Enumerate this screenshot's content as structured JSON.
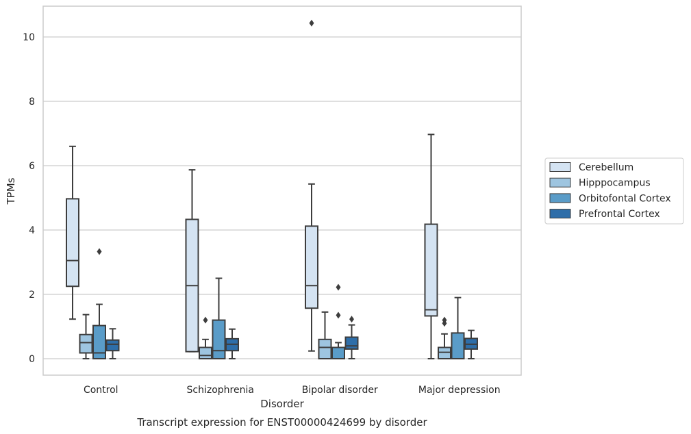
{
  "chart_data": {
    "type": "box",
    "title": "",
    "caption": "Transcript expression for ENST00000424699 by disorder",
    "xlabel": "Disorder",
    "ylabel": "TPMs",
    "ylim": [
      -0.5,
      10.95
    ],
    "yticks": [
      0,
      2,
      4,
      6,
      8,
      10
    ],
    "grid": true,
    "legend_position": "right",
    "categories": [
      "Control",
      "Schizophrenia",
      "Bipolar disorder",
      "Major depression"
    ],
    "series": [
      {
        "name": "Cerebellum",
        "color": "#d4e3f2",
        "boxes": [
          {
            "whisker_low": 1.23,
            "q1": 2.25,
            "median": 3.05,
            "q3": 4.97,
            "whisker_high": 6.6,
            "outliers": []
          },
          {
            "whisker_low": 0.22,
            "q1": 0.22,
            "median": 2.27,
            "q3": 4.33,
            "whisker_high": 5.87,
            "outliers": []
          },
          {
            "whisker_low": 0.24,
            "q1": 1.57,
            "median": 2.27,
            "q3": 4.12,
            "whisker_high": 5.43,
            "outliers": [
              10.43
            ]
          },
          {
            "whisker_low": 0.0,
            "q1": 1.33,
            "median": 1.52,
            "q3": 4.18,
            "whisker_high": 6.97,
            "outliers": []
          }
        ]
      },
      {
        "name": "Hipppocampus",
        "color": "#9ec5e0",
        "boxes": [
          {
            "whisker_low": 0.0,
            "q1": 0.18,
            "median": 0.5,
            "q3": 0.75,
            "whisker_high": 1.37,
            "outliers": []
          },
          {
            "whisker_low": 0.0,
            "q1": 0.0,
            "median": 0.1,
            "q3": 0.35,
            "whisker_high": 0.6,
            "outliers": [
              1.2
            ]
          },
          {
            "whisker_low": 0.0,
            "q1": 0.0,
            "median": 0.35,
            "q3": 0.6,
            "whisker_high": 1.45,
            "outliers": []
          },
          {
            "whisker_low": 0.0,
            "q1": 0.0,
            "median": 0.2,
            "q3": 0.35,
            "whisker_high": 0.77,
            "outliers": [
              1.1,
              1.2
            ]
          }
        ]
      },
      {
        "name": "Orbitofontal Cortex",
        "color": "#5a9cc8",
        "boxes": [
          {
            "whisker_low": 0.0,
            "q1": 0.0,
            "median": 0.18,
            "q3": 1.03,
            "whisker_high": 1.69,
            "outliers": [
              3.33
            ]
          },
          {
            "whisker_low": 0.0,
            "q1": 0.0,
            "median": 0.25,
            "q3": 1.2,
            "whisker_high": 2.5,
            "outliers": []
          },
          {
            "whisker_low": 0.0,
            "q1": 0.0,
            "median": 0.0,
            "q3": 0.35,
            "whisker_high": 0.5,
            "outliers": [
              1.35,
              2.22
            ]
          },
          {
            "whisker_low": 0.0,
            "q1": 0.0,
            "median": 0.0,
            "q3": 0.8,
            "whisker_high": 1.9,
            "outliers": []
          }
        ]
      },
      {
        "name": "Prefrontal Cortex",
        "color": "#2e6ea9",
        "boxes": [
          {
            "whisker_low": 0.0,
            "q1": 0.25,
            "median": 0.45,
            "q3": 0.58,
            "whisker_high": 0.93,
            "outliers": []
          },
          {
            "whisker_low": 0.0,
            "q1": 0.25,
            "median": 0.45,
            "q3": 0.62,
            "whisker_high": 0.92,
            "outliers": []
          },
          {
            "whisker_low": 0.0,
            "q1": 0.3,
            "median": 0.4,
            "q3": 0.67,
            "whisker_high": 1.05,
            "outliers": [
              1.23
            ]
          },
          {
            "whisker_low": 0.0,
            "q1": 0.3,
            "median": 0.45,
            "q3": 0.63,
            "whisker_high": 0.88,
            "outliers": []
          }
        ]
      }
    ]
  }
}
